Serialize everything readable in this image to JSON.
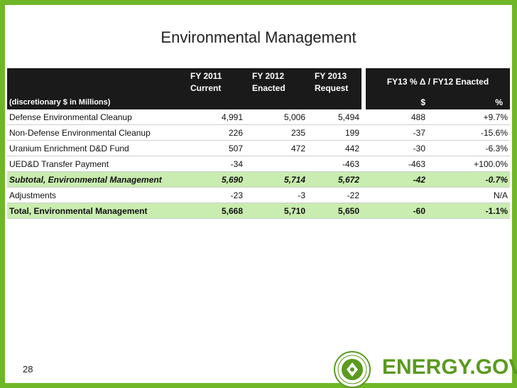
{
  "slide": {
    "title": "Environmental Management",
    "page_number": "28",
    "brand": "ENERGY.GOV"
  },
  "table": {
    "headers": {
      "fy2011_line1": "FY 2011",
      "fy2011_line2": "Current",
      "fy2012_line1": "FY 2012",
      "fy2012_line2": "Enacted",
      "fy2013_line1": "FY 2013",
      "fy2013_line2": "Request",
      "delta": "FY13 % Δ / FY12 Enacted",
      "units": "(discretionary $ in Millions)",
      "dollar": "$",
      "percent": "%"
    },
    "rows": [
      {
        "label": "Defense Environmental Cleanup",
        "fy2011": "4,991",
        "fy2012": "5,006",
        "fy2013": "5,494",
        "delta_dollar": "488",
        "delta_pct": "+9.7%"
      },
      {
        "label": "Non-Defense Environmental Cleanup",
        "fy2011": "226",
        "fy2012": "235",
        "fy2013": "199",
        "delta_dollar": "-37",
        "delta_pct": "-15.6%"
      },
      {
        "label": "Uranium Enrichment D&D Fund",
        "fy2011": "507",
        "fy2012": "472",
        "fy2013": "442",
        "delta_dollar": "-30",
        "delta_pct": "-6.3%"
      },
      {
        "label": "UED&D Transfer Payment",
        "fy2011": "-34",
        "fy2012": "",
        "fy2013": "-463",
        "delta_dollar": "-463",
        "delta_pct": "+100.0%"
      },
      {
        "label": "Subtotal, Environmental Management",
        "fy2011": "5,690",
        "fy2012": "5,714",
        "fy2013": "5,672",
        "delta_dollar": "-42",
        "delta_pct": "-0.7%"
      },
      {
        "label": "Adjustments",
        "fy2011": "-23",
        "fy2012": "-3",
        "fy2013": "-22",
        "delta_dollar": "",
        "delta_pct": "N/A"
      },
      {
        "label": "Total, Environmental Management",
        "fy2011": "5,668",
        "fy2012": "5,710",
        "fy2013": "5,650",
        "delta_dollar": "-60",
        "delta_pct": "-1.1%"
      }
    ]
  },
  "colors": {
    "frame": "#6fb726",
    "header_bg": "#1a1a1a",
    "highlight_row": "#c9ecb0",
    "brand_green": "#5a9a1f"
  },
  "icons": {
    "seal": "doe-seal-icon"
  }
}
